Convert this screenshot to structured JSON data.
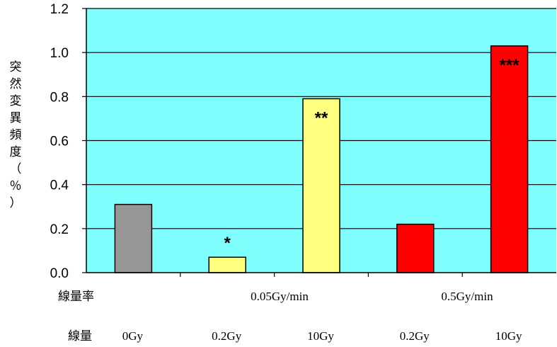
{
  "chart_data": {
    "type": "bar",
    "ylabel_chars": [
      "突",
      "然",
      "変",
      "異",
      "頻",
      "度",
      "（",
      "％",
      "）"
    ],
    "ylim": [
      0,
      1.2
    ],
    "yticks": [
      "0.0",
      "0.2",
      "0.4",
      "0.6",
      "0.8",
      "1.0",
      "1.2"
    ],
    "grid": true,
    "plot_background": "#80FFFF",
    "bars": [
      {
        "dose": "0Gy",
        "value": 0.31,
        "color": "#969696",
        "significance": ""
      },
      {
        "dose": "0.2Gy",
        "value": 0.07,
        "color": "#FFFF80",
        "significance": "*"
      },
      {
        "dose": "10Gy",
        "value": 0.79,
        "color": "#FFFF80",
        "significance": "**"
      },
      {
        "dose": "0.2Gy",
        "value": 0.22,
        "color": "#FF0000",
        "significance": ""
      },
      {
        "dose": "10Gy",
        "value": 1.03,
        "color": "#FF0000",
        "significance": "***"
      }
    ],
    "dose_rate_row_label": "線量率",
    "dose_rates": [
      "0.05Gy/min",
      "0.5Gy/min"
    ],
    "dose_row_label": "線量"
  }
}
